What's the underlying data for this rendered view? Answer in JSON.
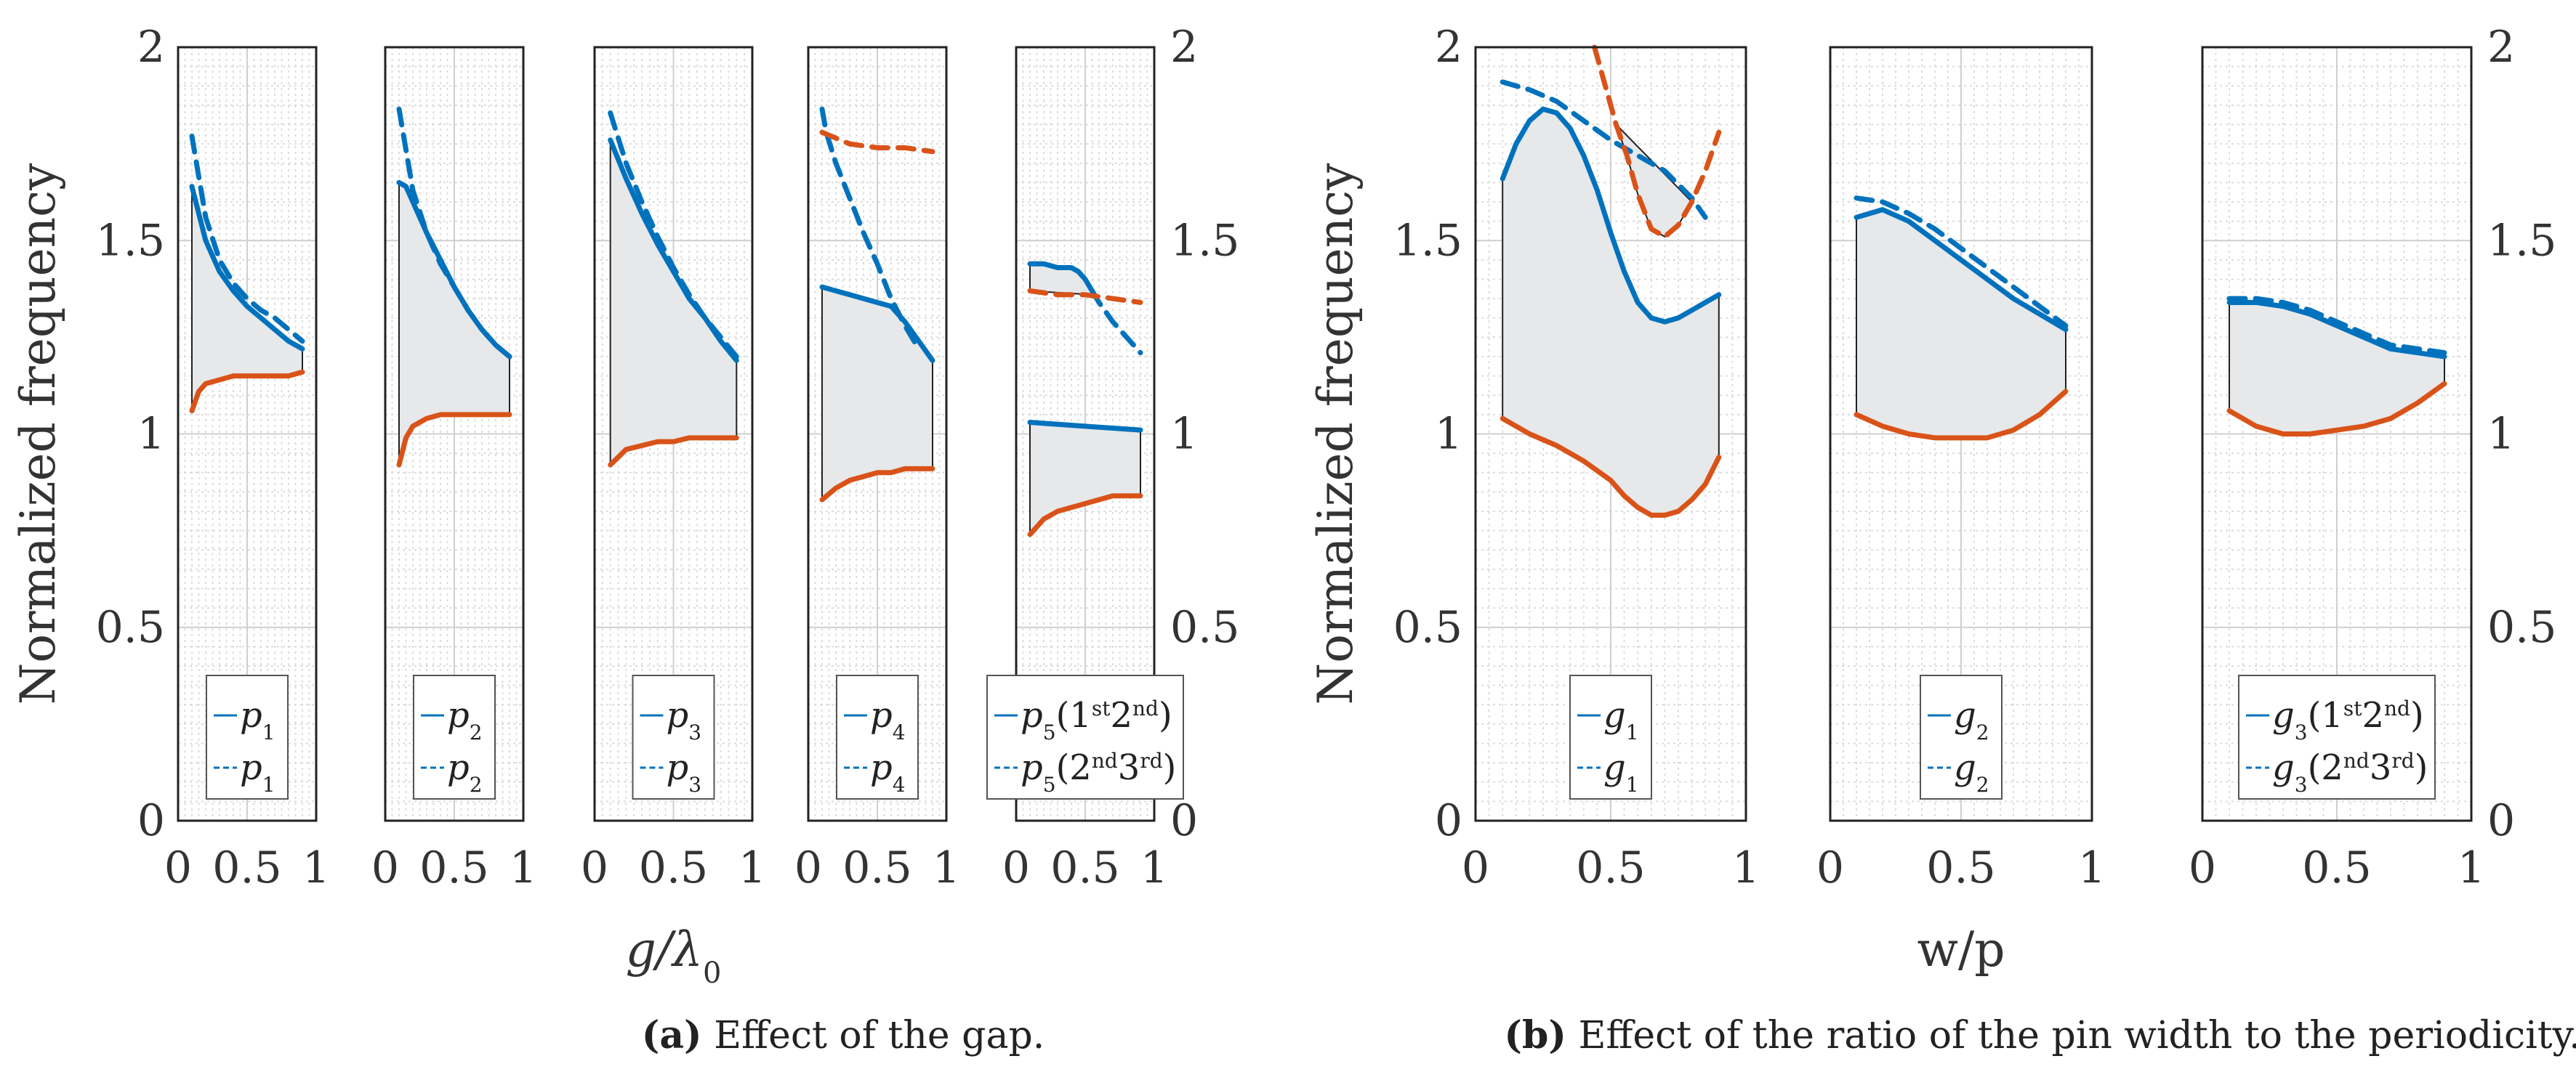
{
  "chart_data": [
    {
      "type": "line",
      "group": "a",
      "title": "",
      "xlabel": "",
      "ylabel": "Normalized frequency",
      "xlim": [
        0,
        1
      ],
      "ylim": [
        0,
        2
      ],
      "xticks": [
        "0",
        "0.5",
        "1"
      ],
      "yticks": [
        "0",
        "0.5",
        "1",
        "1.5",
        "2"
      ],
      "yaxis_side": "left",
      "legend": {
        "position": "bottom",
        "entries": [
          {
            "base": "p",
            "sub": "1",
            "style": "solid"
          },
          {
            "base": "p",
            "sub": "1",
            "style": "dashed"
          }
        ]
      },
      "series": [
        {
          "name": "upper",
          "color": "#0072BD",
          "style": "solid",
          "x": [
            0.1,
            0.2,
            0.3,
            0.4,
            0.5,
            0.6,
            0.7,
            0.8,
            0.9
          ],
          "y": [
            1.64,
            1.5,
            1.42,
            1.37,
            1.33,
            1.3,
            1.27,
            1.24,
            1.22
          ]
        },
        {
          "name": "lower",
          "color": "#D95319",
          "style": "solid",
          "x": [
            0.1,
            0.15,
            0.2,
            0.3,
            0.4,
            0.5,
            0.6,
            0.7,
            0.8,
            0.9
          ],
          "y": [
            1.06,
            1.11,
            1.13,
            1.14,
            1.15,
            1.15,
            1.15,
            1.15,
            1.15,
            1.16
          ]
        },
        {
          "name": "dashed",
          "color": "#0072BD",
          "style": "dashed",
          "x": [
            0.1,
            0.2,
            0.3,
            0.4,
            0.5,
            0.6,
            0.7,
            0.8,
            0.9
          ],
          "y": [
            1.77,
            1.56,
            1.45,
            1.39,
            1.35,
            1.32,
            1.3,
            1.27,
            1.24
          ]
        }
      ]
    },
    {
      "type": "line",
      "group": "a",
      "title": "",
      "xlabel": "",
      "ylabel": "",
      "xlim": [
        0,
        1
      ],
      "ylim": [
        0,
        2
      ],
      "xticks": [
        "0",
        "0.5",
        "1"
      ],
      "yticks": [],
      "yaxis_side": "none",
      "legend": {
        "position": "bottom",
        "entries": [
          {
            "base": "p",
            "sub": "2",
            "style": "solid"
          },
          {
            "base": "p",
            "sub": "2",
            "style": "dashed"
          }
        ]
      },
      "series": [
        {
          "name": "upper",
          "color": "#0072BD",
          "style": "solid",
          "x": [
            0.1,
            0.15,
            0.2,
            0.3,
            0.4,
            0.5,
            0.6,
            0.7,
            0.8,
            0.9
          ],
          "y": [
            1.65,
            1.64,
            1.6,
            1.52,
            1.45,
            1.38,
            1.32,
            1.27,
            1.23,
            1.2
          ]
        },
        {
          "name": "lower",
          "color": "#D95319",
          "style": "solid",
          "x": [
            0.1,
            0.15,
            0.2,
            0.3,
            0.4,
            0.5,
            0.6,
            0.7,
            0.8,
            0.9
          ],
          "y": [
            0.92,
            0.99,
            1.02,
            1.04,
            1.05,
            1.05,
            1.05,
            1.05,
            1.05,
            1.05
          ]
        },
        {
          "name": "dashed",
          "color": "#0072BD",
          "style": "dashed",
          "x": [
            0.1,
            0.2,
            0.3,
            0.4,
            0.5,
            0.6,
            0.7,
            0.8,
            0.9
          ],
          "y": [
            1.84,
            1.63,
            1.52,
            1.44,
            1.38,
            1.32,
            1.27,
            1.23,
            1.2
          ]
        }
      ]
    },
    {
      "type": "line",
      "group": "a",
      "title": "",
      "xlabel": "g/λ0",
      "ylabel": "",
      "xlim": [
        0,
        1
      ],
      "ylim": [
        0,
        2
      ],
      "xticks": [
        "0",
        "0.5",
        "1"
      ],
      "yticks": [],
      "yaxis_side": "none",
      "legend": {
        "position": "bottom",
        "entries": [
          {
            "base": "p",
            "sub": "3",
            "style": "solid"
          },
          {
            "base": "p",
            "sub": "3",
            "style": "dashed"
          }
        ]
      },
      "series": [
        {
          "name": "upper",
          "color": "#0072BD",
          "style": "solid",
          "x": [
            0.1,
            0.2,
            0.3,
            0.4,
            0.5,
            0.6,
            0.7,
            0.8,
            0.9
          ],
          "y": [
            1.76,
            1.66,
            1.57,
            1.49,
            1.42,
            1.35,
            1.3,
            1.24,
            1.19
          ]
        },
        {
          "name": "lower",
          "color": "#D95319",
          "style": "solid",
          "x": [
            0.1,
            0.15,
            0.2,
            0.3,
            0.4,
            0.5,
            0.6,
            0.7,
            0.8,
            0.9
          ],
          "y": [
            0.92,
            0.94,
            0.96,
            0.97,
            0.98,
            0.98,
            0.99,
            0.99,
            0.99,
            0.99
          ]
        },
        {
          "name": "dashed",
          "color": "#0072BD",
          "style": "dashed",
          "x": [
            0.1,
            0.2,
            0.3,
            0.4,
            0.5,
            0.6,
            0.7,
            0.8,
            0.9
          ],
          "y": [
            1.83,
            1.7,
            1.6,
            1.51,
            1.43,
            1.36,
            1.3,
            1.25,
            1.2
          ]
        }
      ]
    },
    {
      "type": "line",
      "group": "a",
      "title": "",
      "xlabel": "",
      "ylabel": "",
      "xlim": [
        0,
        1
      ],
      "ylim": [
        0,
        2
      ],
      "xticks": [
        "0",
        "0.5",
        "1"
      ],
      "yticks": [],
      "yaxis_side": "none",
      "legend": {
        "position": "bottom",
        "entries": [
          {
            "base": "p",
            "sub": "4",
            "style": "solid"
          },
          {
            "base": "p",
            "sub": "4",
            "style": "dashed"
          }
        ]
      },
      "series": [
        {
          "name": "upper",
          "color": "#0072BD",
          "style": "solid",
          "x": [
            0.1,
            0.2,
            0.3,
            0.4,
            0.5,
            0.6,
            0.7,
            0.8,
            0.9
          ],
          "y": [
            1.38,
            1.37,
            1.36,
            1.35,
            1.34,
            1.33,
            1.29,
            1.24,
            1.19
          ]
        },
        {
          "name": "lower",
          "color": "#D95319",
          "style": "solid",
          "x": [
            0.1,
            0.2,
            0.3,
            0.4,
            0.5,
            0.6,
            0.7,
            0.8,
            0.9
          ],
          "y": [
            0.83,
            0.86,
            0.88,
            0.89,
            0.9,
            0.9,
            0.91,
            0.91,
            0.91
          ]
        },
        {
          "name": "dashed-blue",
          "color": "#0072BD",
          "style": "dashed",
          "x": [
            0.1,
            0.13,
            0.2,
            0.3,
            0.4,
            0.5,
            0.6,
            0.7,
            0.8
          ],
          "y": [
            1.84,
            1.78,
            1.7,
            1.61,
            1.52,
            1.44,
            1.35,
            1.28,
            1.22
          ]
        },
        {
          "name": "dashed-orange",
          "color": "#D95319",
          "style": "dashed",
          "x": [
            0.1,
            0.3,
            0.5,
            0.7,
            0.9
          ],
          "y": [
            1.78,
            1.75,
            1.74,
            1.74,
            1.73
          ]
        }
      ]
    },
    {
      "type": "line",
      "group": "a",
      "title": "",
      "xlabel": "",
      "ylabel": "",
      "xlim": [
        0,
        1
      ],
      "ylim": [
        0,
        2
      ],
      "xticks": [
        "0",
        "0.5",
        "1"
      ],
      "yticks": [
        "0",
        "0.5",
        "1",
        "1.5",
        "2"
      ],
      "yaxis_side": "right",
      "legend": {
        "position": "bottom",
        "entries": [
          {
            "base": "p",
            "sub": "5",
            "suffix": "(1st2nd)",
            "style": "solid"
          },
          {
            "base": "p",
            "sub": "5",
            "suffix": "(2nd3rd)",
            "style": "dashed"
          }
        ]
      },
      "series": [
        {
          "name": "upper-1",
          "color": "#0072BD",
          "style": "solid",
          "x": [
            0.1,
            0.5,
            0.9
          ],
          "y": [
            1.03,
            1.02,
            1.01
          ]
        },
        {
          "name": "lower-1",
          "color": "#D95319",
          "style": "solid",
          "x": [
            0.1,
            0.2,
            0.3,
            0.5,
            0.7,
            0.9
          ],
          "y": [
            0.74,
            0.78,
            0.8,
            0.82,
            0.84,
            0.84
          ]
        },
        {
          "name": "upper-2",
          "color": "#0072BD",
          "style": "solid",
          "x": [
            0.1,
            0.2,
            0.3,
            0.4,
            0.45,
            0.5,
            0.55
          ],
          "y": [
            1.44,
            1.44,
            1.43,
            1.43,
            1.42,
            1.4,
            1.37
          ]
        },
        {
          "name": "dashed-blue",
          "color": "#0072BD",
          "style": "dashed",
          "x": [
            0.55,
            0.6,
            0.7,
            0.8,
            0.9
          ],
          "y": [
            1.37,
            1.34,
            1.29,
            1.25,
            1.21
          ]
        },
        {
          "name": "dashed-orange",
          "color": "#D95319",
          "style": "dashed",
          "x": [
            0.1,
            0.3,
            0.5,
            0.7,
            0.9
          ],
          "y": [
            1.37,
            1.36,
            1.36,
            1.35,
            1.34
          ]
        }
      ]
    },
    {
      "type": "line",
      "group": "b",
      "title": "",
      "xlabel": "",
      "ylabel": "Normalized frequency",
      "xlim": [
        0,
        1
      ],
      "ylim": [
        0,
        2
      ],
      "xticks": [
        "0",
        "0.5",
        "1"
      ],
      "yticks": [
        "0",
        "0.5",
        "1",
        "1.5",
        "2"
      ],
      "yaxis_side": "left",
      "legend": {
        "position": "bottom",
        "entries": [
          {
            "base": "g",
            "sub": "1",
            "style": "solid"
          },
          {
            "base": "g",
            "sub": "1",
            "style": "dashed"
          }
        ]
      },
      "series": [
        {
          "name": "upper",
          "color": "#0072BD",
          "style": "solid",
          "x": [
            0.1,
            0.15,
            0.2,
            0.25,
            0.3,
            0.35,
            0.4,
            0.45,
            0.5,
            0.55,
            0.6,
            0.65,
            0.7,
            0.75,
            0.8,
            0.85,
            0.9
          ],
          "y": [
            1.66,
            1.75,
            1.81,
            1.84,
            1.83,
            1.79,
            1.72,
            1.63,
            1.52,
            1.42,
            1.34,
            1.3,
            1.29,
            1.3,
            1.32,
            1.34,
            1.36
          ]
        },
        {
          "name": "lower",
          "color": "#D95319",
          "style": "solid",
          "x": [
            0.1,
            0.2,
            0.3,
            0.4,
            0.5,
            0.55,
            0.6,
            0.65,
            0.7,
            0.75,
            0.8,
            0.85,
            0.9
          ],
          "y": [
            1.04,
            1.0,
            0.97,
            0.93,
            0.88,
            0.84,
            0.81,
            0.79,
            0.79,
            0.8,
            0.83,
            0.87,
            0.94
          ]
        },
        {
          "name": "dashed-blue",
          "color": "#0072BD",
          "style": "dashed",
          "x": [
            0.1,
            0.2,
            0.3,
            0.4,
            0.5,
            0.6,
            0.7,
            0.8,
            0.85
          ],
          "y": [
            1.91,
            1.89,
            1.86,
            1.81,
            1.76,
            1.72,
            1.68,
            1.61,
            1.56
          ]
        },
        {
          "name": "dashed-orange",
          "color": "#D95319",
          "style": "dashed",
          "x": [
            0.44,
            0.48,
            0.52,
            0.56,
            0.6,
            0.65,
            0.7,
            0.75,
            0.8,
            0.85,
            0.9
          ],
          "y": [
            2.0,
            1.9,
            1.8,
            1.72,
            1.62,
            1.53,
            1.51,
            1.54,
            1.6,
            1.68,
            1.78
          ]
        }
      ]
    },
    {
      "type": "line",
      "group": "b",
      "title": "",
      "xlabel": "w/p",
      "ylabel": "",
      "xlim": [
        0,
        1
      ],
      "ylim": [
        0,
        2
      ],
      "xticks": [
        "0",
        "0.5",
        "1"
      ],
      "yticks": [],
      "yaxis_side": "none",
      "legend": {
        "position": "bottom",
        "entries": [
          {
            "base": "g",
            "sub": "2",
            "style": "solid"
          },
          {
            "base": "g",
            "sub": "2",
            "style": "dashed"
          }
        ]
      },
      "series": [
        {
          "name": "upper",
          "color": "#0072BD",
          "style": "solid",
          "x": [
            0.1,
            0.2,
            0.3,
            0.4,
            0.5,
            0.6,
            0.7,
            0.8,
            0.9
          ],
          "y": [
            1.56,
            1.58,
            1.55,
            1.5,
            1.45,
            1.4,
            1.35,
            1.31,
            1.27
          ]
        },
        {
          "name": "lower",
          "color": "#D95319",
          "style": "solid",
          "x": [
            0.1,
            0.2,
            0.3,
            0.4,
            0.5,
            0.6,
            0.7,
            0.8,
            0.9
          ],
          "y": [
            1.05,
            1.02,
            1.0,
            0.99,
            0.99,
            0.99,
            1.01,
            1.05,
            1.11
          ]
        },
        {
          "name": "dashed",
          "color": "#0072BD",
          "style": "dashed",
          "x": [
            0.1,
            0.2,
            0.3,
            0.4,
            0.5,
            0.6,
            0.7,
            0.8,
            0.9
          ],
          "y": [
            1.61,
            1.6,
            1.57,
            1.53,
            1.48,
            1.43,
            1.38,
            1.33,
            1.28
          ]
        }
      ]
    },
    {
      "type": "line",
      "group": "b",
      "title": "",
      "xlabel": "",
      "ylabel": "",
      "xlim": [
        0,
        1
      ],
      "ylim": [
        0,
        2
      ],
      "xticks": [
        "0",
        "0.5",
        "1"
      ],
      "yticks": [
        "0",
        "0.5",
        "1",
        "1.5",
        "2"
      ],
      "yaxis_side": "right",
      "legend": {
        "position": "bottom",
        "entries": [
          {
            "base": "g",
            "sub": "3",
            "suffix": "(1st2nd)",
            "style": "solid"
          },
          {
            "base": "g",
            "sub": "3",
            "suffix": "(2nd3rd)",
            "style": "dashed"
          }
        ]
      },
      "series": [
        {
          "name": "upper",
          "color": "#0072BD",
          "style": "solid",
          "x": [
            0.1,
            0.2,
            0.3,
            0.4,
            0.5,
            0.6,
            0.7,
            0.8,
            0.9
          ],
          "y": [
            1.34,
            1.34,
            1.33,
            1.31,
            1.28,
            1.25,
            1.22,
            1.21,
            1.2
          ]
        },
        {
          "name": "lower",
          "color": "#D95319",
          "style": "solid",
          "x": [
            0.1,
            0.2,
            0.3,
            0.4,
            0.5,
            0.6,
            0.7,
            0.8,
            0.9
          ],
          "y": [
            1.06,
            1.02,
            1.0,
            1.0,
            1.01,
            1.02,
            1.04,
            1.08,
            1.13
          ]
        },
        {
          "name": "dashed",
          "color": "#0072BD",
          "style": "dashed",
          "x": [
            0.1,
            0.2,
            0.3,
            0.4,
            0.5,
            0.6,
            0.7,
            0.8,
            0.9
          ],
          "y": [
            1.35,
            1.35,
            1.34,
            1.32,
            1.29,
            1.26,
            1.23,
            1.22,
            1.21
          ]
        }
      ]
    }
  ],
  "captions": [
    {
      "label": "(a)",
      "text": " Effect of the gap."
    },
    {
      "label": "(b)",
      "text": " Effect of the ratio of the pin width to the periodicity."
    }
  ]
}
